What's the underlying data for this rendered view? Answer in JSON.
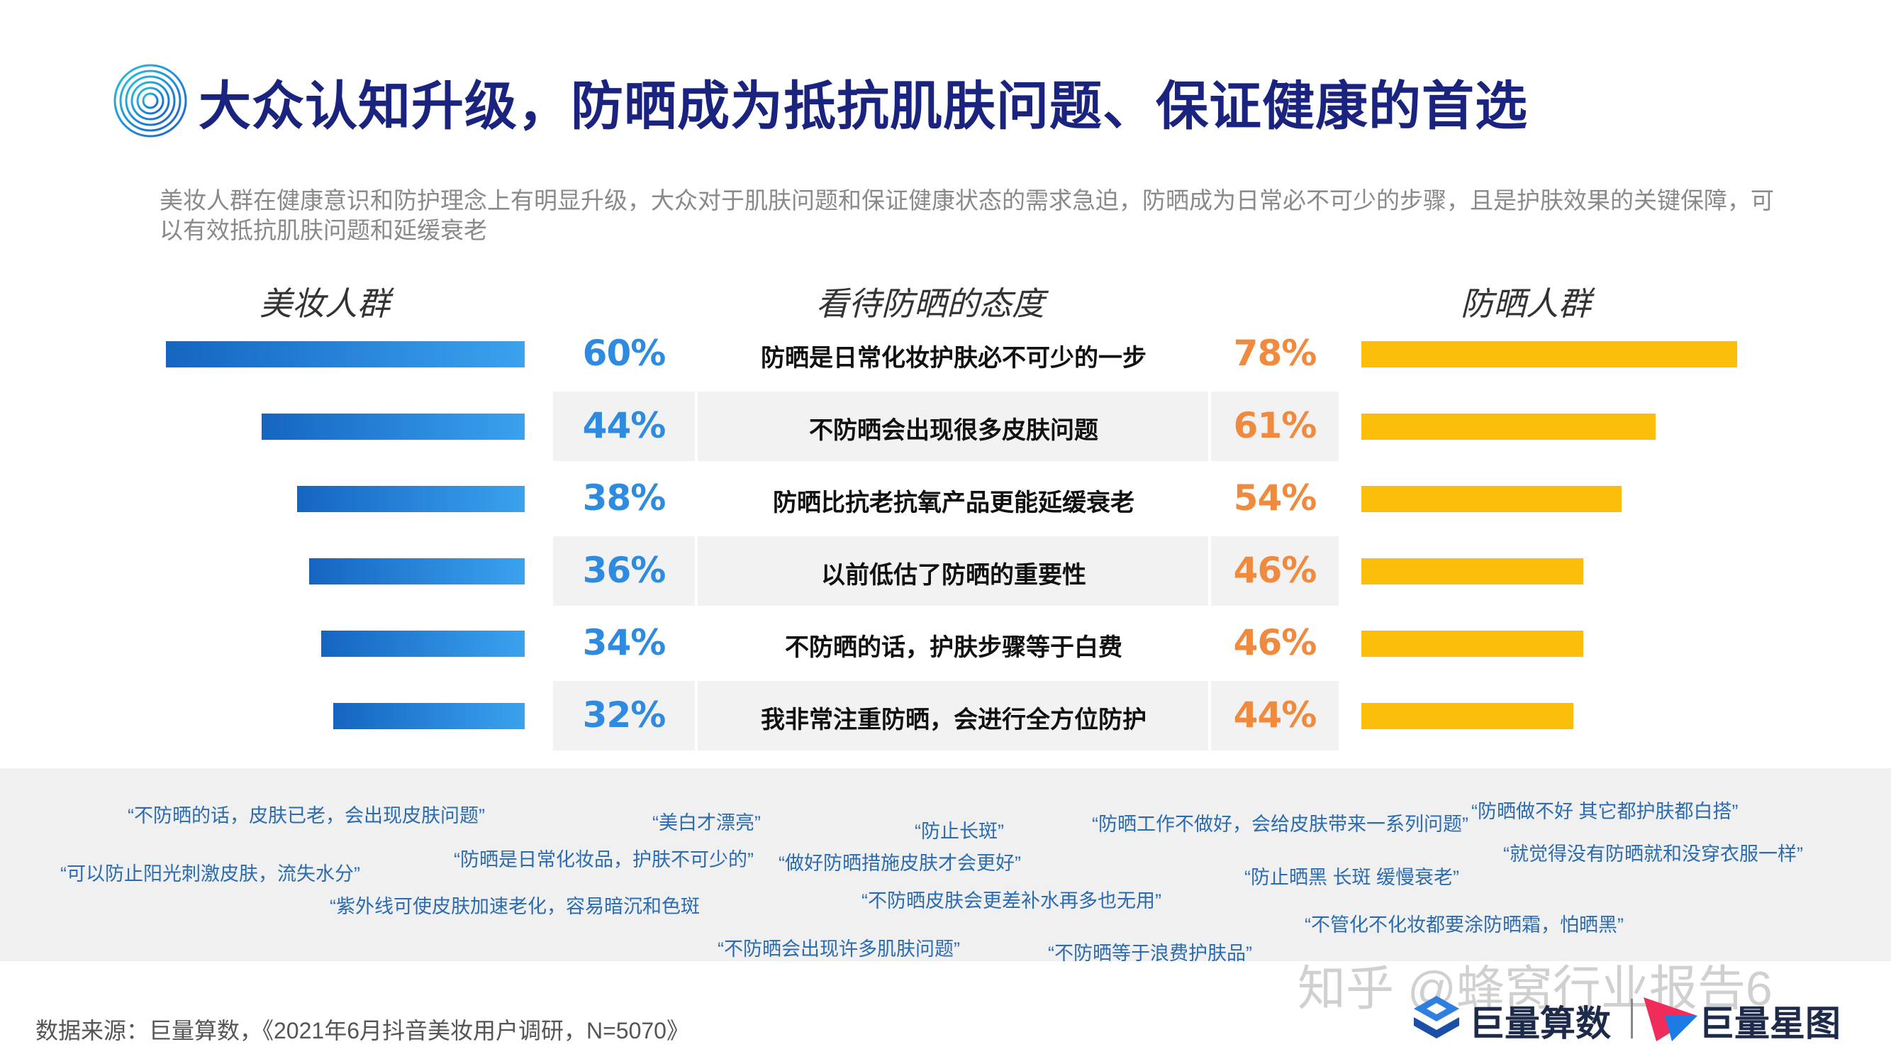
{
  "title": "大众认知升级，防晒成为抵抗肌肤问题、保证健康的首选",
  "subtitle": "美妆人群在健康意识和防护理念上有明显升级，大众对于肌肤问题和保证健康状态的需求急迫，防晒成为日常必不可少的步骤，且是护肤效果的关键保障，可以有效抵抗肌肤问题和延缓衰老",
  "headers": {
    "left": "美妆人群",
    "middle": "看待防晒的态度",
    "right": "防晒人群"
  },
  "colors": {
    "title": "#1a237e",
    "left_bar_start": "#1565c0",
    "left_bar_end": "#3aa2ef",
    "left_pct": "#2f8be0",
    "right_bar": "#fbbf0b",
    "right_pct": "#ef8a3f",
    "quote": "#2b6cb0"
  },
  "chart_data": {
    "type": "bar",
    "categories": [
      "防晒是日常化妆护肤必不可少的一步",
      "不防晒会出现很多皮肤问题",
      "防晒比抗老抗氧产品更能延缓衰老",
      "以前低估了防晒的重要性",
      "不防晒的话，护肤步骤等于白费",
      "我非常注重防晒，会进行全方位防护"
    ],
    "series": [
      {
        "name": "美妆人群",
        "values": [
          60,
          44,
          38,
          36,
          34,
          32
        ],
        "labels": [
          "60%",
          "44%",
          "38%",
          "36%",
          "34%",
          "32%"
        ]
      },
      {
        "name": "防晒人群",
        "values": [
          78,
          61,
          54,
          46,
          46,
          44
        ],
        "labels": [
          "78%",
          "61%",
          "54%",
          "46%",
          "46%",
          "44%"
        ]
      }
    ],
    "unit": "%"
  },
  "quotes": [
    "“不防晒的话，皮肤已老，会出现皮肤问题”",
    "“美白才漂亮”",
    "“防止长斑”",
    "“防晒工作不做好，会给皮肤带来一系列问题”",
    "“防晒做不好 其它都护肤都白搭”",
    "“可以防止阳光刺激皮肤，流失水分”",
    "“防晒是日常化妆品，护肤不可少的”",
    "“做好防晒措施皮肤才会更好”",
    "“防止晒黑 长斑 缓慢衰老”",
    "“就觉得没有防晒就和没穿衣服一样”",
    "“紫外线可使皮肤加速老化，容易暗沉和色斑",
    "“不防晒皮肤会更差补水再多也无用”",
    "“不管化不化妆都要涂防晒霜，怕晒黑”",
    "“不防晒会出现许多肌肤问题”",
    "“不防晒等于浪费护肤品”"
  ],
  "source": "数据来源：巨量算数，《2021年6月抖音美妆用户调研，N=5070》",
  "watermark": "知乎 @蜂窝行业报告6",
  "brands": {
    "juliang_suanshu": "巨量算数",
    "juliang_xingtu": "巨量星图"
  }
}
